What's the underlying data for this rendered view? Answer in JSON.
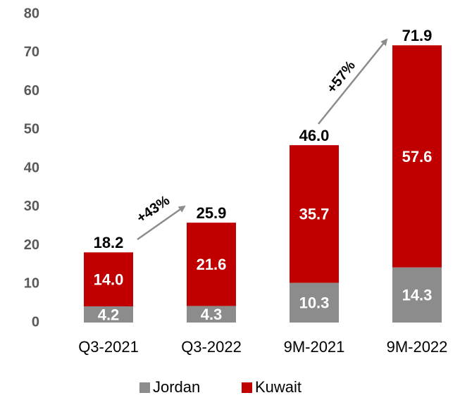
{
  "chart_data": {
    "type": "stacked_bar",
    "categories": [
      "Q3-2021",
      "Q3-2022",
      "9M-2021",
      "9M-2022"
    ],
    "series": [
      {
        "name": "Jordan",
        "color": "#8c8c8c",
        "values": [
          4.2,
          4.3,
          10.3,
          14.3
        ]
      },
      {
        "name": "Kuwait",
        "color": "#c00000",
        "values": [
          14.0,
          21.6,
          35.7,
          57.6
        ],
        "value_labels": [
          "14.0",
          "21.6",
          "35.7",
          "57.6"
        ]
      }
    ],
    "totals": [
      18.2,
      25.9,
      46.0,
      71.9
    ],
    "total_labels": [
      "18.2",
      "25.9",
      "46.0",
      "71.9"
    ],
    "annotations": [
      {
        "text": "+43%"
      },
      {
        "text": "+57%"
      }
    ],
    "ylim": [
      0,
      80
    ],
    "yticks": [
      0,
      10,
      20,
      30,
      40,
      50,
      60,
      70,
      80
    ],
    "grid": false,
    "legend": "bottom"
  }
}
